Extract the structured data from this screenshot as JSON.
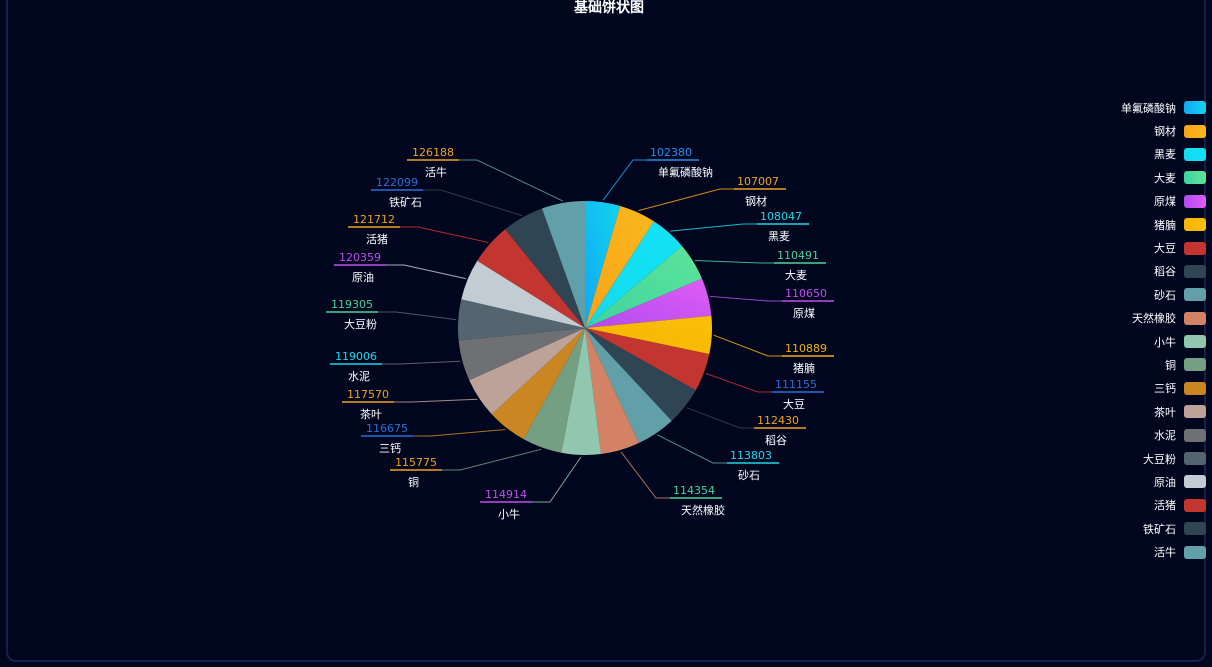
{
  "chart_data": {
    "type": "pie",
    "title": "基础饼状图",
    "legend_position": "right",
    "slices": [
      {
        "name": "单氟磷酸钠",
        "value": 102380,
        "color": "#13a8f5",
        "color2": "#11d4ee",
        "label_color": "#1e8ff0"
      },
      {
        "name": "钢材",
        "value": 107007,
        "color": "#f7a418",
        "color2": "#fbb81c",
        "label_color": "#f0a322"
      },
      {
        "name": "黑麦",
        "value": 108047,
        "color": "#13dbf0",
        "color2": "#13e2f5",
        "label_color": "#1dd6e8"
      },
      {
        "name": "大麦",
        "value": 110491,
        "color": "#3ed4a0",
        "color2": "#5ee39a",
        "label_color": "#4ad39a"
      },
      {
        "name": "原煤",
        "value": 110650,
        "color": "#b14cf0",
        "color2": "#e05cf5",
        "label_color": "#c04ef2"
      },
      {
        "name": "猪腩",
        "value": 110889,
        "color": "#f5b400",
        "color2": "#fbc009",
        "label_color": "#f0b10a"
      },
      {
        "name": "大豆",
        "value": 111155,
        "color": "#c23531",
        "color2": "#c23531",
        "label_color": "#2a6fd8"
      },
      {
        "name": "稻谷",
        "value": 112430,
        "color": "#2f4554",
        "color2": "#2f4554",
        "label_color": "#f0a322"
      },
      {
        "name": "砂石",
        "value": 113803,
        "color": "#61a0a8",
        "color2": "#61a0a8",
        "label_color": "#1dd6e8"
      },
      {
        "name": "天然橡胶",
        "value": 114354,
        "color": "#d48265",
        "color2": "#d48265",
        "label_color": "#4ad39a"
      },
      {
        "name": "小牛",
        "value": 114914,
        "color": "#91c7ae",
        "color2": "#91c7ae",
        "label_color": "#c04ef2"
      },
      {
        "name": "铜",
        "value": 115775,
        "color": "#749f83",
        "color2": "#749f83",
        "label_color": "#f0a322"
      },
      {
        "name": "三钙",
        "value": 116675,
        "color": "#ca8622",
        "color2": "#ca8622",
        "label_color": "#2a6fd8"
      },
      {
        "name": "茶叶",
        "value": 117570,
        "color": "#bda29a",
        "color2": "#bda29a",
        "label_color": "#f0a322"
      },
      {
        "name": "水泥",
        "value": 119006,
        "color": "#6e7074",
        "color2": "#6e7074",
        "label_color": "#1dd6e8"
      },
      {
        "name": "大豆粉",
        "value": 119305,
        "color": "#546570",
        "color2": "#546570",
        "label_color": "#4ad39a"
      },
      {
        "name": "原油",
        "value": 120359,
        "color": "#c4ccd3",
        "color2": "#c4ccd3",
        "label_color": "#c04ef2"
      },
      {
        "name": "活猪",
        "value": 121712,
        "color": "#c23531",
        "color2": "#c23531",
        "label_color": "#f0a322"
      },
      {
        "name": "铁矿石",
        "value": 122099,
        "color": "#2f4554",
        "color2": "#2f4554",
        "label_color": "#2a6fd8"
      },
      {
        "name": "活牛",
        "value": 126188,
        "color": "#61a0a8",
        "color2": "#61a0a8",
        "label_color": "#f0a322"
      }
    ]
  }
}
